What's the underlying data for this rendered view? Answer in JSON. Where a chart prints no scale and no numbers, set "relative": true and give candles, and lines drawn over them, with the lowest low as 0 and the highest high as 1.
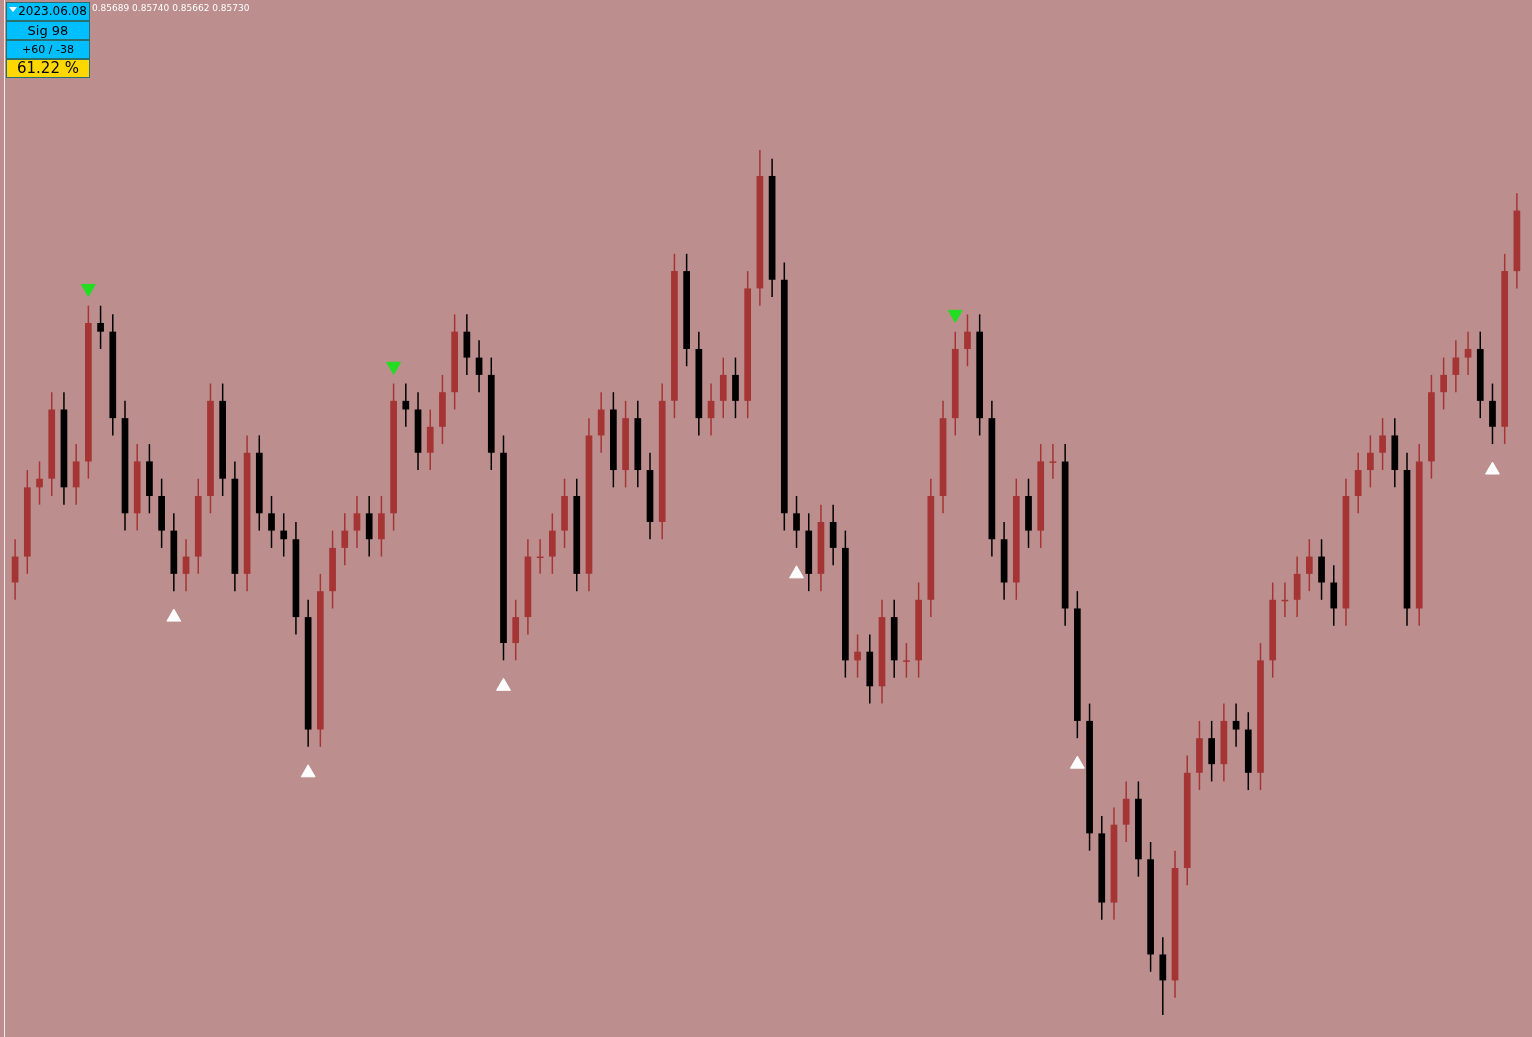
{
  "chart_data": {
    "type": "candlestick",
    "relative": true,
    "colors": [
      "#a53434",
      "#a53434",
      "#a53434",
      "#a53434",
      "#000000",
      "#a53434",
      "#a53434",
      "#000000",
      "#000000",
      "#000000",
      "#a53434",
      "#000000",
      "#000000",
      "#000000",
      "#a53434",
      "#a53434",
      "#a53434",
      "#000000",
      "#000000",
      "#a53434",
      "#000000",
      "#000000",
      "#000000",
      "#000000",
      "#000000",
      "#a53434",
      "#a53434",
      "#a53434",
      "#a53434",
      "#000000",
      "#a53434",
      "#a53434",
      "#000000",
      "#000000",
      "#a53434",
      "#a53434",
      "#a53434",
      "#000000",
      "#000000",
      "#000000",
      "#000000",
      "#a53434",
      "#a53434",
      "#a53434",
      "#a53434",
      "#a53434",
      "#000000",
      "#a53434",
      "#a53434",
      "#000000",
      "#a53434",
      "#000000",
      "#000000",
      "#a53434",
      "#a53434",
      "#000000",
      "#000000",
      "#a53434",
      "#a53434",
      "#000000",
      "#a53434",
      "#a53434",
      "#000000",
      "#000000",
      "#000000",
      "#000000",
      "#a53434",
      "#000000",
      "#000000",
      "#a53434",
      "#000000",
      "#a53434",
      "#000000",
      "#a53434",
      "#a53434",
      "#a53434",
      "#a53434",
      "#a53434",
      "#a53434",
      "#000000",
      "#000000",
      "#000000",
      "#a53434",
      "#000000",
      "#a53434",
      "#a53434",
      "#000000",
      "#000000",
      "#000000",
      "#000000",
      "#a53434",
      "#a53434",
      "#000000",
      "#000000",
      "#000000",
      "#a53434",
      "#a53434",
      "#a53434",
      "#000000",
      "#a53434",
      "#000000",
      "#000000",
      "#a53434",
      "#a53434",
      "#a53434",
      "#a53434",
      "#a53434",
      "#000000",
      "#000000",
      "#a53434",
      "#a53434",
      "#a53434",
      "#a53434",
      "#000000",
      "#000000",
      "#a53434",
      "#a53434",
      "#a53434",
      "#a53434",
      "#a53434",
      "#000000",
      "#000000",
      "#a53434",
      "#a53434"
    ],
    "categories": [
      null,
      null,
      null,
      null,
      null,
      null,
      null,
      null,
      null,
      null,
      null,
      null,
      null,
      null,
      null,
      null,
      null,
      null,
      null,
      null,
      null,
      null,
      null,
      null,
      null,
      null,
      null,
      null,
      null,
      null,
      null,
      null,
      null,
      null,
      null,
      null,
      null,
      null,
      null,
      null,
      null,
      null,
      null,
      null,
      null,
      null,
      null,
      null,
      null,
      null,
      null,
      null,
      null,
      null,
      null,
      null,
      null,
      null,
      null,
      null,
      null,
      null,
      null,
      null,
      null,
      null,
      null,
      null,
      null,
      null,
      null,
      null,
      null,
      null,
      null,
      null,
      null,
      null,
      null,
      null,
      null,
      null,
      null,
      null,
      null,
      null,
      null,
      null,
      null,
      null,
      null,
      null,
      null,
      null,
      null,
      null,
      null,
      null,
      null,
      null,
      null,
      null,
      null,
      null,
      null,
      null,
      null,
      null,
      null,
      null,
      null,
      null,
      null,
      null,
      null,
      null,
      null,
      null,
      null,
      null,
      null,
      null,
      null,
      null
    ],
    "ohlc": [
      [
        0.5,
        0.55,
        0.48,
        0.53
      ],
      [
        0.53,
        0.63,
        0.51,
        0.61
      ],
      [
        0.61,
        0.64,
        0.59,
        0.62
      ],
      [
        0.62,
        0.72,
        0.6,
        0.7
      ],
      [
        0.7,
        0.72,
        0.59,
        0.61
      ],
      [
        0.61,
        0.66,
        0.59,
        0.64
      ],
      [
        0.64,
        0.82,
        0.62,
        0.8
      ],
      [
        0.8,
        0.82,
        0.77,
        0.79
      ],
      [
        0.79,
        0.81,
        0.67,
        0.69
      ],
      [
        0.69,
        0.71,
        0.56,
        0.58
      ],
      [
        0.58,
        0.66,
        0.56,
        0.64
      ],
      [
        0.64,
        0.66,
        0.58,
        0.6
      ],
      [
        0.6,
        0.62,
        0.54,
        0.56
      ],
      [
        0.56,
        0.58,
        0.49,
        0.51
      ],
      [
        0.51,
        0.55,
        0.49,
        0.53
      ],
      [
        0.53,
        0.62,
        0.51,
        0.6
      ],
      [
        0.6,
        0.73,
        0.58,
        0.71
      ],
      [
        0.71,
        0.73,
        0.6,
        0.62
      ],
      [
        0.62,
        0.64,
        0.49,
        0.51
      ],
      [
        0.51,
        0.67,
        0.49,
        0.65
      ],
      [
        0.65,
        0.67,
        0.56,
        0.58
      ],
      [
        0.58,
        0.6,
        0.54,
        0.56
      ],
      [
        0.56,
        0.58,
        0.53,
        0.55
      ],
      [
        0.55,
        0.57,
        0.44,
        0.46
      ],
      [
        0.46,
        0.48,
        0.31,
        0.33
      ],
      [
        0.33,
        0.51,
        0.31,
        0.49
      ],
      [
        0.49,
        0.56,
        0.47,
        0.54
      ],
      [
        0.54,
        0.58,
        0.52,
        0.56
      ],
      [
        0.56,
        0.6,
        0.54,
        0.58
      ],
      [
        0.58,
        0.6,
        0.53,
        0.55
      ],
      [
        0.55,
        0.6,
        0.53,
        0.58
      ],
      [
        0.58,
        0.73,
        0.56,
        0.71
      ],
      [
        0.71,
        0.73,
        0.68,
        0.7
      ],
      [
        0.7,
        0.72,
        0.63,
        0.65
      ],
      [
        0.65,
        0.7,
        0.63,
        0.68
      ],
      [
        0.68,
        0.74,
        0.66,
        0.72
      ],
      [
        0.72,
        0.81,
        0.7,
        0.79
      ],
      [
        0.79,
        0.81,
        0.74,
        0.76
      ],
      [
        0.76,
        0.78,
        0.72,
        0.74
      ],
      [
        0.74,
        0.76,
        0.63,
        0.65
      ],
      [
        0.65,
        0.67,
        0.41,
        0.43
      ],
      [
        0.43,
        0.48,
        0.41,
        0.46
      ],
      [
        0.46,
        0.55,
        0.44,
        0.53
      ],
      [
        0.53,
        0.55,
        0.51,
        0.53
      ],
      [
        0.53,
        0.58,
        0.51,
        0.56
      ],
      [
        0.56,
        0.62,
        0.54,
        0.6
      ],
      [
        0.6,
        0.62,
        0.49,
        0.51
      ],
      [
        0.51,
        0.69,
        0.49,
        0.67
      ],
      [
        0.67,
        0.72,
        0.65,
        0.7
      ],
      [
        0.7,
        0.72,
        0.61,
        0.63
      ],
      [
        0.63,
        0.71,
        0.61,
        0.69
      ],
      [
        0.69,
        0.71,
        0.61,
        0.63
      ],
      [
        0.63,
        0.65,
        0.55,
        0.57
      ],
      [
        0.57,
        0.73,
        0.55,
        0.71
      ],
      [
        0.71,
        0.88,
        0.69,
        0.86
      ],
      [
        0.86,
        0.88,
        0.75,
        0.77
      ],
      [
        0.77,
        0.79,
        0.67,
        0.69
      ],
      [
        0.69,
        0.73,
        0.67,
        0.71
      ],
      [
        0.71,
        0.76,
        0.69,
        0.74
      ],
      [
        0.74,
        0.76,
        0.69,
        0.71
      ],
      [
        0.71,
        0.86,
        0.69,
        0.84
      ],
      [
        0.84,
        1,
        0.82,
        0.97
      ],
      [
        0.97,
        0.99,
        0.83,
        0.85
      ],
      [
        0.85,
        0.87,
        0.56,
        0.58
      ],
      [
        0.58,
        0.6,
        0.54,
        0.56
      ],
      [
        0.56,
        0.58,
        0.49,
        0.51
      ],
      [
        0.51,
        0.59,
        0.49,
        0.57
      ],
      [
        0.57,
        0.59,
        0.52,
        0.54
      ],
      [
        0.54,
        0.56,
        0.39,
        0.41
      ],
      [
        0.41,
        0.44,
        0.39,
        0.42
      ],
      [
        0.42,
        0.44,
        0.36,
        0.38
      ],
      [
        0.38,
        0.48,
        0.36,
        0.46
      ],
      [
        0.46,
        0.48,
        0.39,
        0.41
      ],
      [
        0.41,
        0.43,
        0.39,
        0.41
      ],
      [
        0.41,
        0.5,
        0.39,
        0.48
      ],
      [
        0.48,
        0.62,
        0.46,
        0.6
      ],
      [
        0.6,
        0.71,
        0.58,
        0.69
      ],
      [
        0.69,
        0.79,
        0.67,
        0.77
      ],
      [
        0.77,
        0.81,
        0.75,
        0.79
      ],
      [
        0.79,
        0.81,
        0.67,
        0.69
      ],
      [
        0.69,
        0.71,
        0.53,
        0.55
      ],
      [
        0.55,
        0.57,
        0.48,
        0.5
      ],
      [
        0.5,
        0.62,
        0.48,
        0.6
      ],
      [
        0.6,
        0.62,
        0.54,
        0.56
      ],
      [
        0.56,
        0.66,
        0.54,
        0.64
      ],
      [
        0.64,
        0.66,
        0.62,
        0.64
      ],
      [
        0.64,
        0.66,
        0.45,
        0.47
      ],
      [
        0.47,
        0.49,
        0.32,
        0.34
      ],
      [
        0.34,
        0.36,
        0.19,
        0.21
      ],
      [
        0.21,
        0.23,
        0.11,
        0.13
      ],
      [
        0.13,
        0.24,
        0.11,
        0.22
      ],
      [
        0.22,
        0.27,
        0.2,
        0.25
      ],
      [
        0.25,
        0.27,
        0.16,
        0.18
      ],
      [
        0.18,
        0.2,
        0.05,
        0.07
      ],
      [
        0.07,
        0.09,
        0,
        0.04
      ],
      [
        0.04,
        0.19,
        0.02,
        0.17
      ],
      [
        0.17,
        0.3,
        0.15,
        0.28
      ],
      [
        0.28,
        0.34,
        0.26,
        0.32
      ],
      [
        0.32,
        0.34,
        0.27,
        0.29
      ],
      [
        0.29,
        0.36,
        0.27,
        0.34
      ],
      [
        0.34,
        0.36,
        0.31,
        0.33
      ],
      [
        0.33,
        0.35,
        0.26,
        0.28
      ],
      [
        0.28,
        0.43,
        0.26,
        0.41
      ],
      [
        0.41,
        0.5,
        0.39,
        0.48
      ],
      [
        0.48,
        0.5,
        0.46,
        0.48
      ],
      [
        0.48,
        0.53,
        0.46,
        0.51
      ],
      [
        0.51,
        0.55,
        0.49,
        0.53
      ],
      [
        0.53,
        0.55,
        0.48,
        0.5
      ],
      [
        0.5,
        0.52,
        0.45,
        0.47
      ],
      [
        0.47,
        0.62,
        0.45,
        0.6
      ],
      [
        0.6,
        0.65,
        0.58,
        0.63
      ],
      [
        0.63,
        0.67,
        0.61,
        0.65
      ],
      [
        0.65,
        0.69,
        0.63,
        0.67
      ],
      [
        0.67,
        0.69,
        0.61,
        0.63
      ],
      [
        0.63,
        0.65,
        0.45,
        0.47
      ],
      [
        0.47,
        0.66,
        0.45,
        0.64
      ],
      [
        0.64,
        0.74,
        0.62,
        0.72
      ],
      [
        0.72,
        0.76,
        0.7,
        0.74
      ],
      [
        0.74,
        0.78,
        0.72,
        0.76
      ],
      [
        0.76,
        0.79,
        0.74,
        0.77
      ],
      [
        0.77,
        0.79,
        0.69,
        0.71
      ],
      [
        0.71,
        0.73,
        0.66,
        0.68
      ],
      [
        0.68,
        0.88,
        0.66,
        0.86
      ],
      [
        0.86,
        0.95,
        0.84,
        0.93
      ]
    ],
    "series": [
      {
        "type": "scatter",
        "color": "#ffffff",
        "marker": "triangle",
        "values": [
          null,
          null,
          null,
          null,
          null,
          null,
          null,
          null,
          null,
          null,
          null,
          null,
          null,
          0.46,
          null,
          null,
          null,
          null,
          null,
          null,
          null,
          null,
          null,
          null,
          0.28,
          null,
          null,
          null,
          null,
          null,
          null,
          null,
          null,
          null,
          null,
          null,
          null,
          null,
          null,
          null,
          0.38,
          null,
          null,
          null,
          null,
          null,
          null,
          null,
          null,
          null,
          null,
          null,
          null,
          null,
          null,
          null,
          null,
          null,
          null,
          null,
          null,
          null,
          null,
          null,
          0.51,
          null,
          null,
          null,
          null,
          null,
          null,
          null,
          null,
          null,
          null,
          null,
          null,
          null,
          null,
          null,
          null,
          null,
          null,
          null,
          null,
          null,
          null,
          0.29,
          null,
          null,
          null,
          null,
          null,
          null,
          null,
          null,
          null,
          null,
          null,
          null,
          null,
          null,
          null,
          null,
          null,
          null,
          null,
          null,
          null,
          null,
          null,
          null,
          null,
          null,
          null,
          null,
          null,
          null,
          null,
          null,
          null,
          0.63,
          null,
          null
        ]
      },
      {
        "type": "scatter",
        "color": "#22dd22",
        "marker": "triangle",
        "values": [
          null,
          null,
          null,
          null,
          null,
          null,
          0.84,
          null,
          null,
          null,
          null,
          null,
          null,
          null,
          null,
          null,
          null,
          null,
          null,
          null,
          null,
          null,
          null,
          null,
          null,
          null,
          null,
          null,
          null,
          null,
          null,
          0.75,
          null,
          null,
          null,
          null,
          null,
          null,
          null,
          null,
          null,
          null,
          null,
          null,
          null,
          null,
          null,
          null,
          null,
          null,
          null,
          null,
          null,
          null,
          null,
          null,
          null,
          null,
          null,
          null,
          null,
          null,
          null,
          null,
          null,
          null,
          null,
          null,
          null,
          null,
          null,
          null,
          null,
          null,
          null,
          null,
          null,
          0.81,
          null,
          null,
          null,
          null,
          null,
          null,
          null,
          null,
          null,
          null,
          null,
          null,
          null,
          null,
          null,
          null,
          null,
          null,
          null,
          null,
          null,
          null,
          null,
          null,
          null,
          null,
          null,
          null,
          null,
          null,
          null,
          null,
          null,
          null,
          null,
          null,
          null,
          null,
          null,
          null,
          null,
          null,
          null,
          null,
          null,
          null
        ]
      }
    ],
    "annotations": [
      "0.85689 0.85740 0.85662 0.85730",
      "2023.06.08",
      "Sig  98",
      "+60 / -38",
      "61.22 %"
    ],
    "legend": false
  }
}
